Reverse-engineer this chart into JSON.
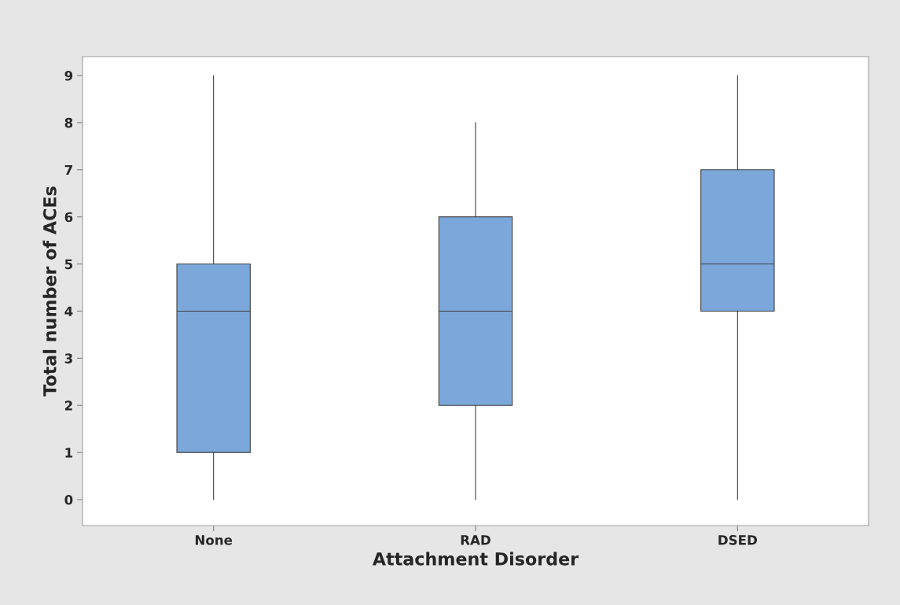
{
  "chart_data": {
    "type": "box",
    "xlabel": "Attachment Disorder",
    "ylabel": "Total number of ACEs",
    "categories": [
      "None",
      "RAD",
      "DSED"
    ],
    "boxes": [
      {
        "low": 0,
        "q1": 1,
        "median": 4,
        "q3": 5,
        "high": 9
      },
      {
        "low": 0,
        "q1": 2,
        "median": 4,
        "q3": 6,
        "high": 8
      },
      {
        "low": 0,
        "q1": 4,
        "median": 5,
        "q3": 7,
        "high": 9
      }
    ],
    "color": "#7ba7da",
    "ylim": [
      -0.55,
      9.4
    ],
    "yticks": [
      0,
      1,
      2,
      3,
      4,
      5,
      6,
      7,
      8,
      9
    ],
    "grid": false,
    "legend": false
  }
}
